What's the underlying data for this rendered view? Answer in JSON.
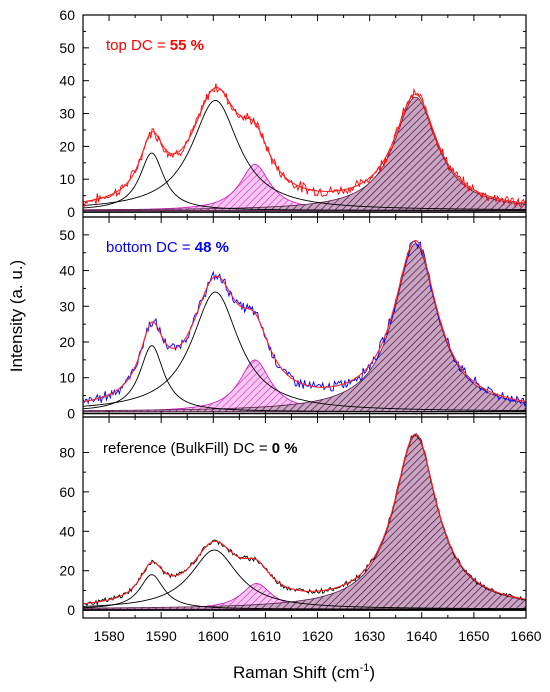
{
  "figure": {
    "ylabel": "Intensity (a. u.)",
    "xlabel_main": "Raman Shift (cm",
    "xlabel_sup": "-1",
    "xlabel_close": ")"
  },
  "chart_data": {
    "type": "line",
    "x_range": [
      1575,
      1660
    ],
    "x_ticks": [
      1580,
      1590,
      1600,
      1610,
      1620,
      1630,
      1640,
      1650,
      1660
    ],
    "panels": [
      {
        "label_prefix": "top DC = ",
        "label_value": "55 %",
        "label_color": "#ff0000",
        "spectrum_color": "#ff0000",
        "ylim": [
          -1.5,
          60
        ],
        "yticks": [
          0,
          10,
          20,
          30,
          40,
          50,
          60
        ],
        "baseline": 0.5,
        "spectrum_noise": 1.3,
        "peaks": [
          {
            "center": 1588.2,
            "height": 17.5,
            "hwhm": 2.8,
            "style": "outline"
          },
          {
            "center": 1600.4,
            "height": 33.5,
            "hwhm": 5.5,
            "style": "outline"
          },
          {
            "center": 1608.0,
            "height": 14.0,
            "hwhm": 3.5,
            "style": "hatched-magenta"
          },
          {
            "center": 1638.8,
            "height": 34.5,
            "hwhm": 5.0,
            "style": "hatched-purple"
          }
        ]
      },
      {
        "label_prefix": "bottom DC = ",
        "label_value": "48 %",
        "label_color": "#0000ff",
        "spectrum_color": "#0000ff",
        "ylim": [
          -1,
          55
        ],
        "yticks": [
          0,
          10,
          20,
          30,
          40,
          50
        ],
        "baseline": 0.5,
        "spectrum_noise": 1.2,
        "peaks": [
          {
            "center": 1588.2,
            "height": 18.5,
            "hwhm": 2.8,
            "style": "outline"
          },
          {
            "center": 1600.4,
            "height": 33.5,
            "hwhm": 5.5,
            "style": "outline"
          },
          {
            "center": 1608.0,
            "height": 14.5,
            "hwhm": 3.6,
            "style": "hatched-magenta"
          },
          {
            "center": 1638.8,
            "height": 47.0,
            "hwhm": 5.0,
            "style": "hatched-purple"
          }
        ]
      },
      {
        "label_prefix": "reference (BulkFill) DC = ",
        "label_value": "0 %",
        "label_color": "#000000",
        "spectrum_color": "#000000",
        "ylim": [
          -4,
          98
        ],
        "yticks": [
          0,
          20,
          40,
          60,
          80
        ],
        "baseline": 0.5,
        "spectrum_noise": 1.0,
        "peaks": [
          {
            "center": 1588.2,
            "height": 17.5,
            "hwhm": 2.8,
            "style": "outline"
          },
          {
            "center": 1600.2,
            "height": 30.0,
            "hwhm": 5.5,
            "style": "outline"
          },
          {
            "center": 1608.3,
            "height": 13.0,
            "hwhm": 3.5,
            "style": "hatched-magenta"
          },
          {
            "center": 1638.8,
            "height": 88.0,
            "hwhm": 5.0,
            "style": "hatched-purple"
          }
        ]
      }
    ]
  }
}
